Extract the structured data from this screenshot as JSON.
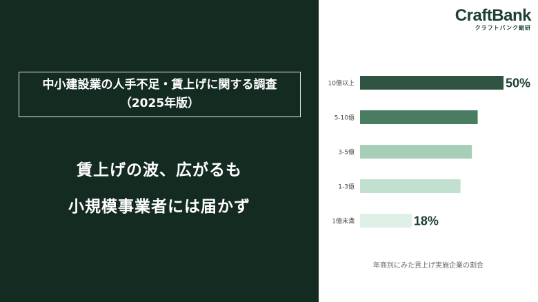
{
  "title_box": {
    "line1": "中小建設業の人手不足・賃上げに関する調査",
    "line2": "（2025年版）"
  },
  "headline": {
    "line1": "賃上げの波、広がるも",
    "line2": "小規模事業者には届かず"
  },
  "logo": {
    "name": "CraftBank",
    "sub": "クラフトバンク総研"
  },
  "colors": {
    "panel_bg": "#142b22",
    "bar_10plus": "#2f5442",
    "bar_5_10": "#4a7c61",
    "bar_3_5": "#a7cfb8",
    "bar_1_3": "#c2e0cf",
    "bar_under1": "#dff0e6",
    "label_dark": "#1d4033"
  },
  "chart_data": {
    "type": "bar",
    "orientation": "horizontal",
    "categories": [
      "10億以上",
      "5-10億",
      "3-5億",
      "1-3億",
      "1億未満"
    ],
    "values": [
      50,
      41,
      39,
      35,
      18
    ],
    "unit": "%",
    "data_labels": [
      "50%",
      "",
      "",
      "",
      "18%"
    ],
    "xlim": [
      0,
      55
    ],
    "grid": false,
    "legend": "none",
    "caption": "年商別にみた賃上げ実施企業の割合"
  }
}
